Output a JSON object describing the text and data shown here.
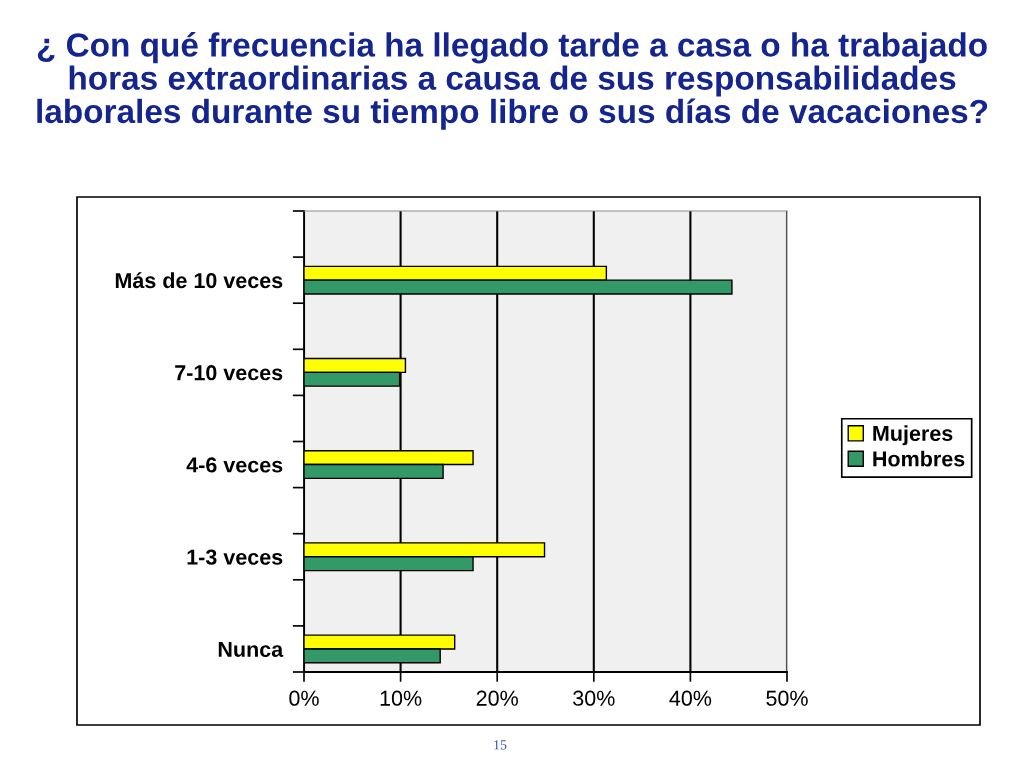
{
  "chart_data": {
    "type": "bar",
    "orientation": "horizontal",
    "title": "¿ Con qué frecuencia ha llegado tarde a casa o ha trabajado\nhoras extraordinarias a causa de sus responsabilidades\nlaborales durante su tiempo libre o sus días de vacaciones?",
    "categories": [
      null,
      "Más de 10 veces",
      null,
      "7-10 veces",
      null,
      "4-6 veces",
      null,
      "1-3 veces",
      null,
      "Nunca"
    ],
    "series": [
      {
        "name": "Mujeres",
        "color": "#ffff00",
        "values": [
          null,
          31.3,
          null,
          10.5,
          null,
          17.5,
          null,
          24.9,
          null,
          15.6
        ]
      },
      {
        "name": "Hombres",
        "color": "#339966",
        "values": [
          null,
          44.3,
          null,
          9.9,
          null,
          14.4,
          null,
          17.5,
          null,
          14.1
        ]
      }
    ],
    "xlim": [
      0,
      50
    ],
    "xticks": [
      {
        "value": 0,
        "label": "0%"
      },
      {
        "value": 10,
        "label": "10%"
      },
      {
        "value": 20,
        "label": "20%"
      },
      {
        "value": 30,
        "label": "30%"
      },
      {
        "value": 40,
        "label": "40%"
      },
      {
        "value": 50,
        "label": "50%"
      }
    ],
    "grid": "x",
    "legend": "right",
    "annotations": [
      "15"
    ]
  }
}
